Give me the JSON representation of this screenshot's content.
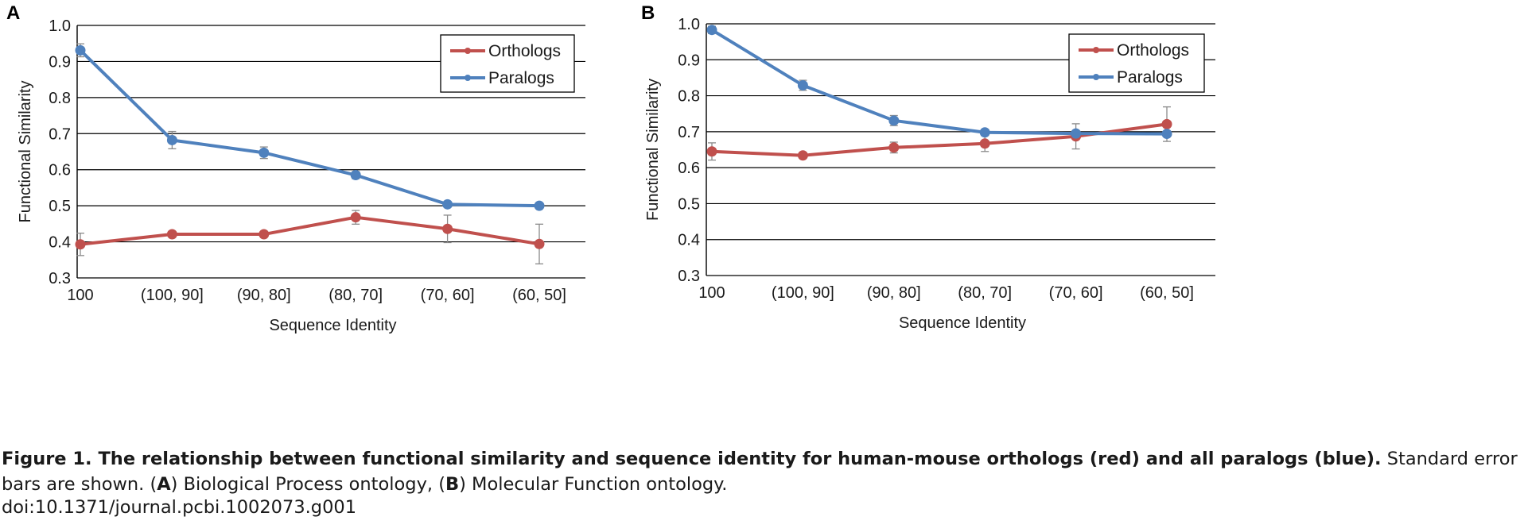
{
  "chart_data": [
    {
      "panel": "A",
      "type": "line",
      "categories": [
        "100",
        "(100, 90]",
        "(90, 80]",
        "(80, 70]",
        "(70, 60]",
        "(60, 50]"
      ],
      "xlabel": "Sequence Identity",
      "ylabel": "Functional Similarity",
      "ylim": [
        0.3,
        1.0
      ],
      "yticks": [
        "0.3",
        "0.4",
        "0.5",
        "0.6",
        "0.7",
        "0.8",
        "0.9",
        "1.0"
      ],
      "grid": true,
      "legend": "top-right",
      "series": [
        {
          "name": "Orthologs",
          "color": "#c0504d",
          "values": [
            0.393,
            0.421,
            0.421,
            0.468,
            0.436,
            0.394
          ],
          "errors": [
            0.031,
            0.007,
            0.006,
            0.019,
            0.038,
            0.055
          ]
        },
        {
          "name": "Paralogs",
          "color": "#4f81bd",
          "values": [
            0.931,
            0.682,
            0.647,
            0.585,
            0.504,
            0.5
          ],
          "errors": [
            0.018,
            0.024,
            0.016,
            0.01,
            0.006,
            0.005
          ]
        }
      ]
    },
    {
      "panel": "B",
      "type": "line",
      "categories": [
        "100",
        "(100, 90]",
        "(90, 80]",
        "(80, 70]",
        "(70, 60]",
        "(60, 50]"
      ],
      "xlabel": "Sequence Identity",
      "ylabel": "Functional Similarity",
      "ylim": [
        0.3,
        1.0
      ],
      "yticks": [
        "0.3",
        "0.4",
        "0.5",
        "0.6",
        "0.7",
        "0.8",
        "0.9",
        "1.0"
      ],
      "grid": true,
      "legend": "top-right",
      "series": [
        {
          "name": "Orthologs",
          "color": "#c0504d",
          "values": [
            0.645,
            0.634,
            0.656,
            0.667,
            0.687,
            0.721
          ],
          "errors": [
            0.024,
            0.006,
            0.015,
            0.022,
            0.035,
            0.048
          ]
        },
        {
          "name": "Paralogs",
          "color": "#4f81bd",
          "values": [
            0.983,
            0.829,
            0.731,
            0.698,
            0.695,
            0.694
          ],
          "errors": [
            0.01,
            0.014,
            0.014,
            0.008,
            0.006,
            0.005
          ]
        }
      ]
    }
  ],
  "caption": {
    "figure_label": "Figure 1.",
    "bold_text": "The relationship between functional similarity and sequence identity for human-mouse orthologs (red) and all paralogs (blue).",
    "body_text": "Standard error bars are shown. (",
    "panel_a": "A",
    "panel_a_text": ") Biological Process ontology, (",
    "panel_b": "B",
    "panel_b_text": ") Molecular Function ontology.",
    "doi": "doi:10.1371/journal.pcbi.1002073.g001"
  }
}
